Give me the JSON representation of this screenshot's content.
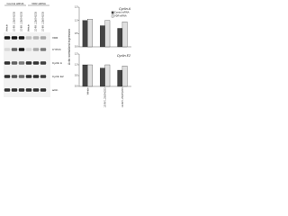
{
  "blot": {
    "groups": [
      "Control siRNA",
      "VDR siRNA"
    ],
    "lanes": [
      "Vehicle",
      "1E-9M 1,25(OH)2D3",
      "1E-8M 1,25(OH)2D3",
      "Vehicle",
      "1E-9M 1,25(OH)2D3",
      "1E-8M 1,25(OH)2D3"
    ],
    "proteins": [
      "VDR",
      "CYP24",
      "Cyclin A",
      "Cyclin E2",
      "actin"
    ]
  },
  "chart_data": [
    {
      "type": "bar",
      "title": "Cyclin A",
      "y_label": "Actin normalized expression",
      "series": [
        {
          "name": "Control siRNA",
          "color": "#444444",
          "values": [
            1.0,
            0.8,
            0.7
          ]
        },
        {
          "name": "VDR siRNA",
          "color": "#e0e0e0",
          "values": [
            1.05,
            1.0,
            0.95
          ]
        }
      ],
      "ylim": [
        0,
        1.5
      ],
      "yticks": [
        {
          "value": 0,
          "label": "0.0"
        },
        {
          "value": 0.5,
          "label": "0.5"
        },
        {
          "value": 1,
          "label": "1.0"
        },
        {
          "value": 1.5,
          "label": "1.5"
        }
      ]
    },
    {
      "type": "bar",
      "title": "Cyclin E2",
      "categories": [
        "Vehicle",
        "1E-9M 1,25(OH)2D3",
        "1E-8M 1,25(OH)2D3"
      ],
      "series": [
        {
          "color": "#444444",
          "values": [
            1.0,
            0.85,
            0.75
          ]
        },
        {
          "color": "#e0e0e0",
          "values": [
            1.0,
            1.0,
            0.95
          ]
        }
      ],
      "ylim": [
        0,
        1.5
      ],
      "yticks": [
        {
          "value": 0,
          "label": "0.0"
        },
        {
          "value": 0.5,
          "label": "0.5"
        },
        {
          "value": 1,
          "label": "1.0"
        },
        {
          "value": 1.5,
          "label": "1.5"
        }
      ]
    }
  ]
}
